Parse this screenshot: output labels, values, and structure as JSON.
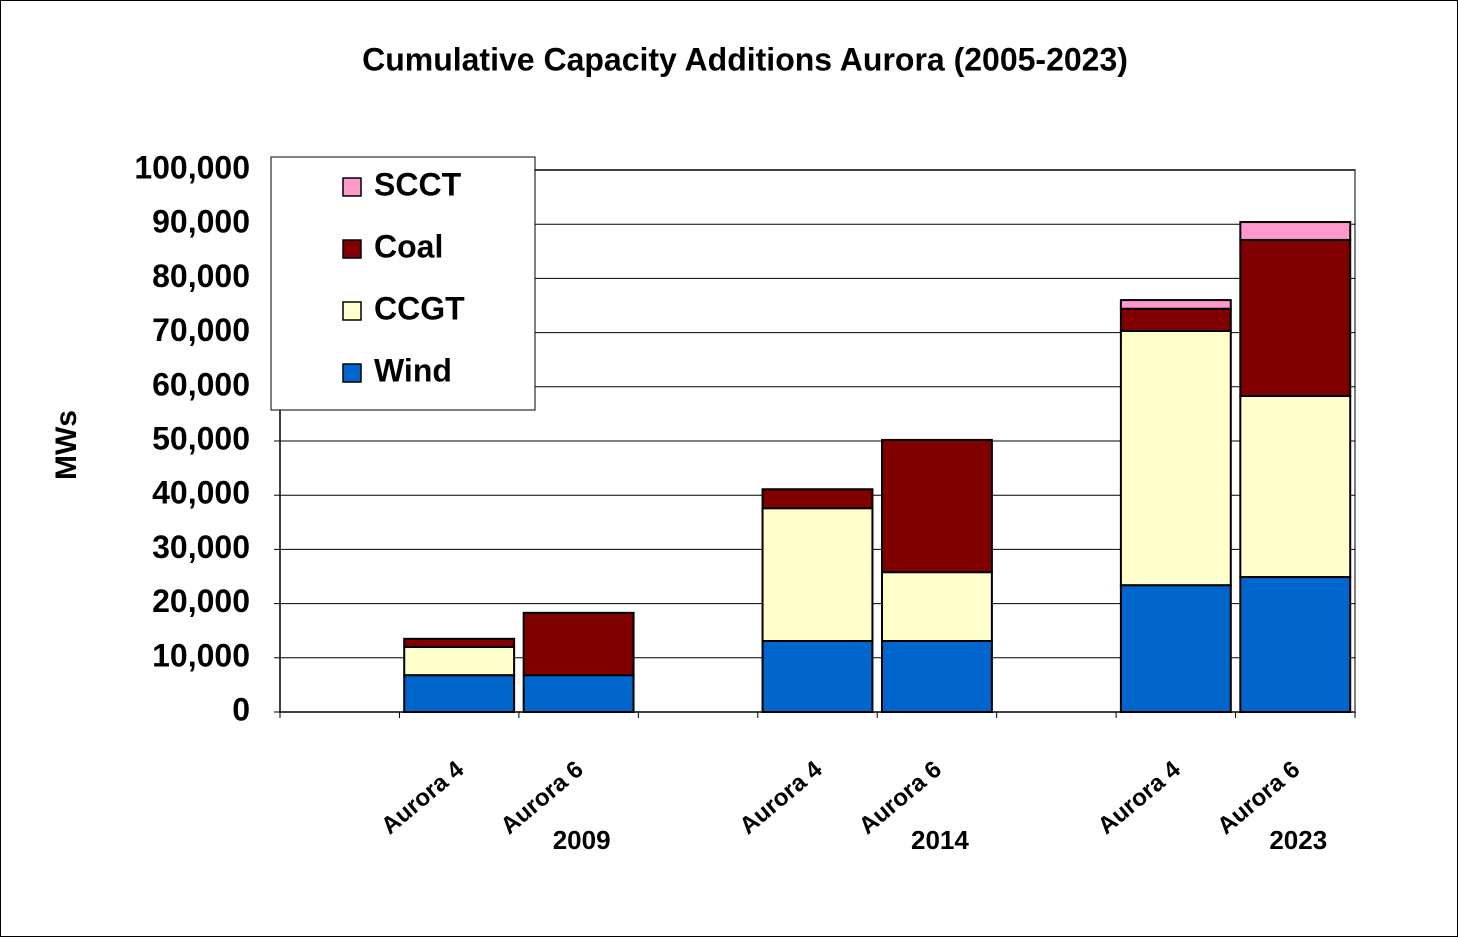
{
  "chart_data": {
    "type": "stacked-bar",
    "title": "Cumulative Capacity Additions Aurora (2005-2023)",
    "y_label": "MWs",
    "categories": [
      null,
      "Aurora 4",
      "Aurora 6",
      null,
      "Aurora 4",
      "Aurora 6",
      null,
      "Aurora 4",
      "Aurora 6"
    ],
    "category_groups": [
      null,
      null,
      "2009",
      null,
      null,
      "2014",
      null,
      null,
      "2023"
    ],
    "series": [
      {
        "name": "Wind",
        "color": "#0066cc",
        "values": [
          null,
          6800,
          6800,
          null,
          13100,
          13100,
          null,
          23400,
          24900
        ]
      },
      {
        "name": "CCGT",
        "color": "#ffffcc",
        "values": [
          null,
          5200,
          0,
          null,
          24500,
          12700,
          null,
          46900,
          33400
        ]
      },
      {
        "name": "Coal",
        "color": "#800000",
        "values": [
          null,
          1500,
          11500,
          null,
          3500,
          24400,
          null,
          4100,
          28800
        ]
      },
      {
        "name": "SCCT",
        "color": "#ff99cc",
        "values": [
          null,
          0,
          0,
          null,
          0,
          0,
          null,
          1600,
          3300
        ]
      }
    ],
    "ylim": [
      0,
      100000
    ],
    "yticks": [
      0,
      {
        "value": 10000,
        "label": "10,000"
      },
      {
        "value": 20000,
        "label": "20,000"
      },
      {
        "value": 30000,
        "label": "30,000"
      },
      {
        "value": 40000,
        "label": "40,000"
      },
      {
        "value": 50000,
        "label": "50,000"
      },
      {
        "value": 60000,
        "label": "60,000"
      },
      {
        "value": 70000,
        "label": "70,000"
      },
      {
        "value": 80000,
        "label": "80,000"
      },
      {
        "value": 90000,
        "label": "90,000"
      },
      {
        "value": 100000,
        "label": "100,000"
      }
    ],
    "grid": true,
    "legend": "top-left"
  }
}
